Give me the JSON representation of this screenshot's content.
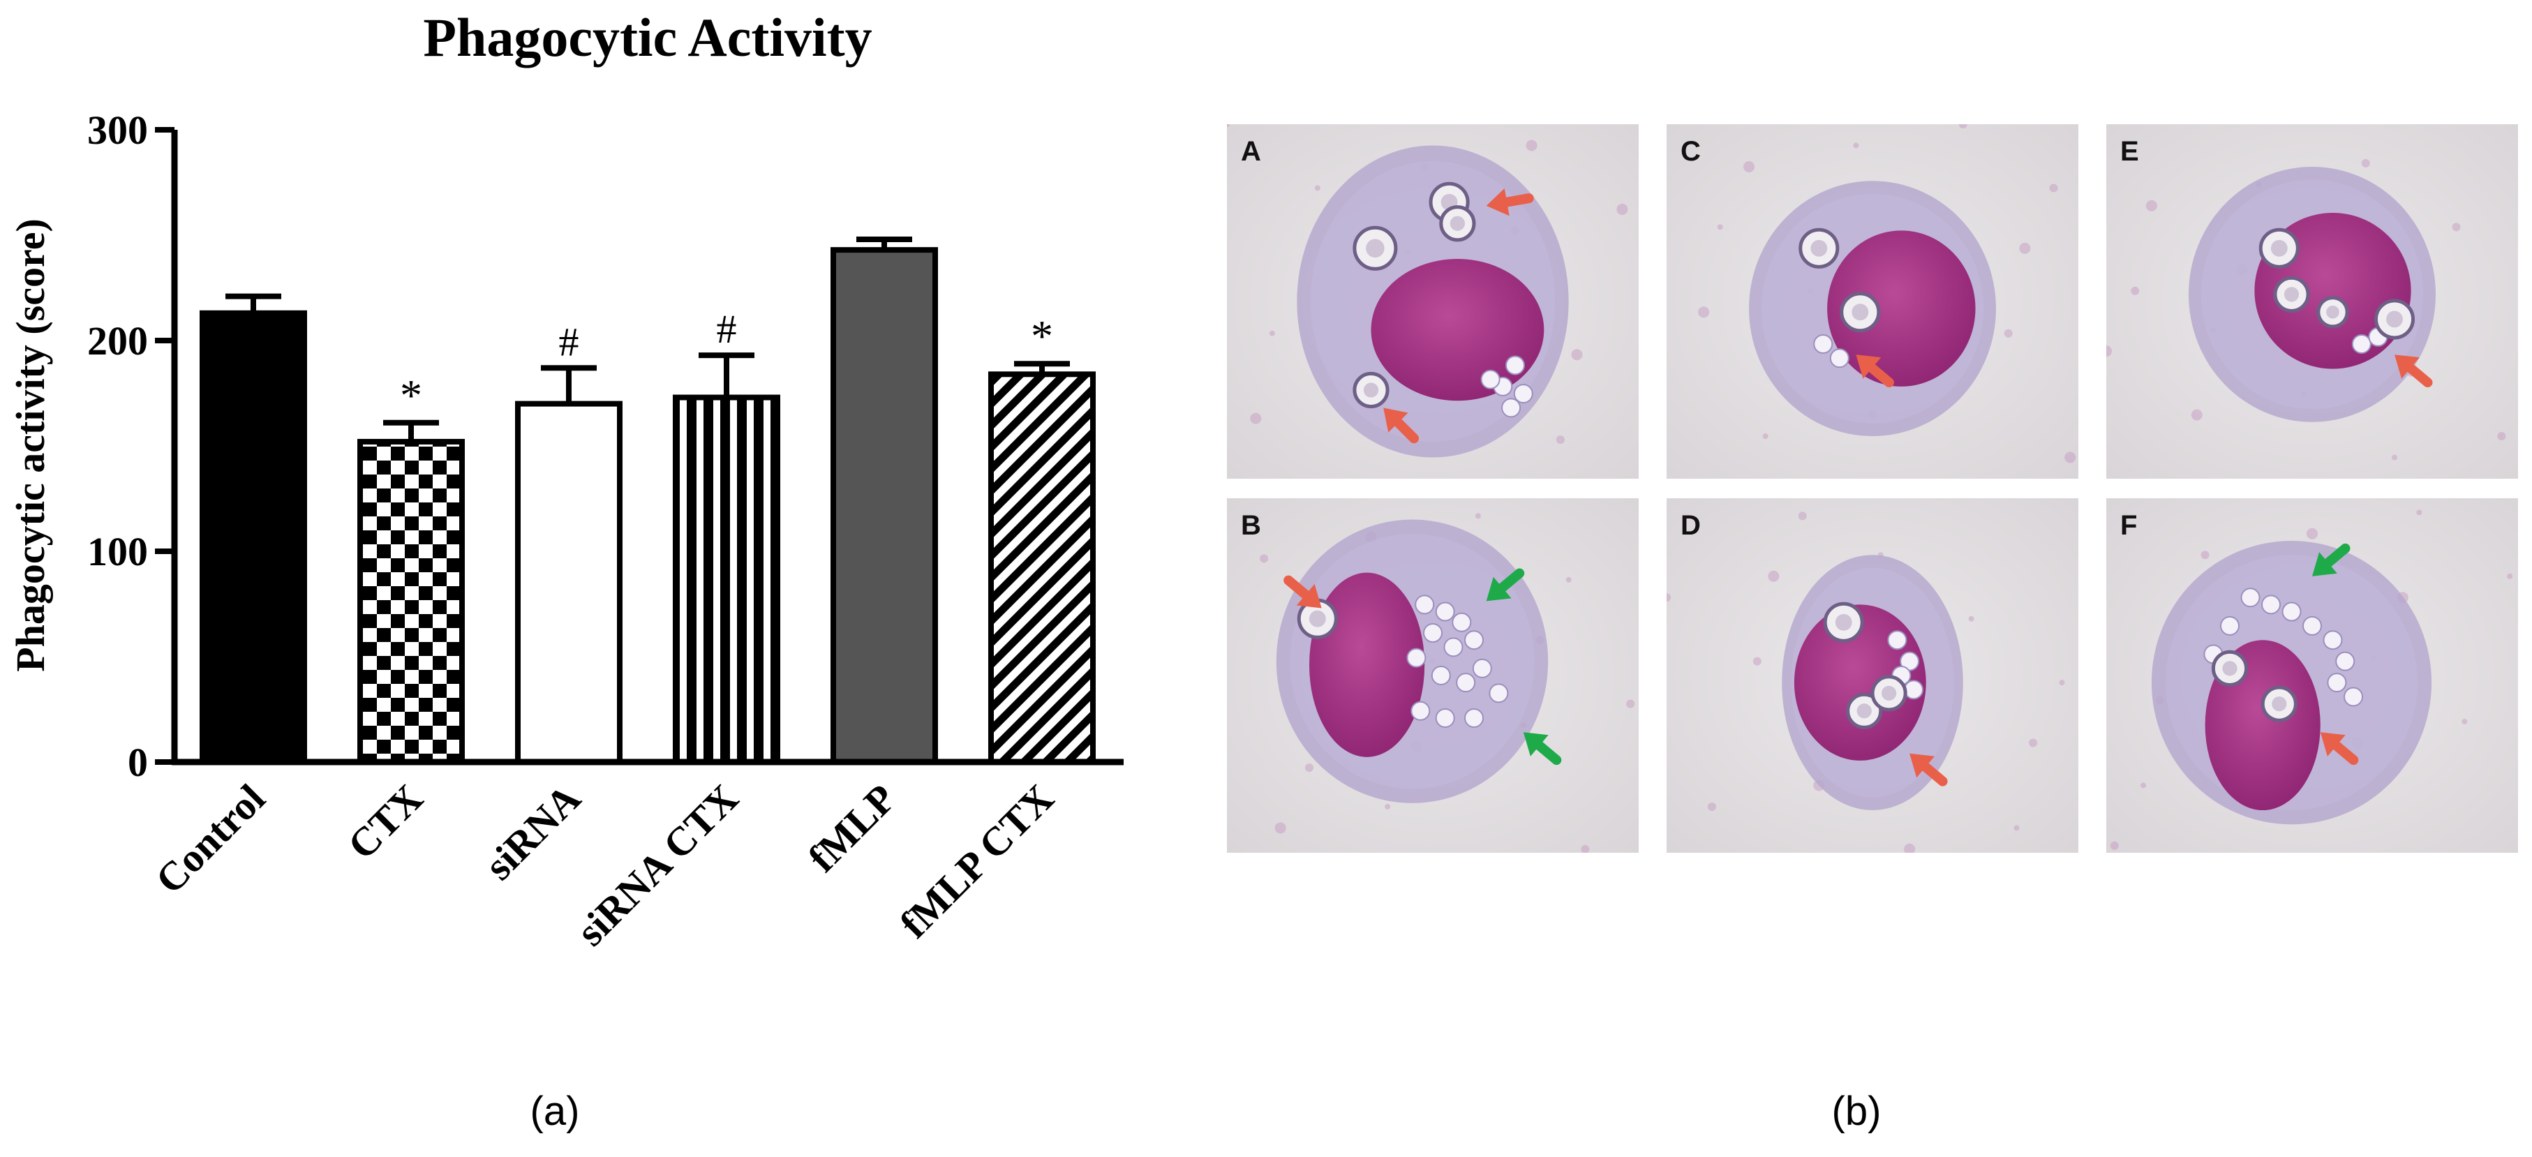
{
  "figure": {
    "panel_a_label": "(a)",
    "panel_b_label": "(b)"
  },
  "chart_data": {
    "type": "bar",
    "title": "Phagocytic Activity",
    "ylabel": "Phagocytic activity (score)",
    "xlabel": "",
    "ylim": [
      0,
      300
    ],
    "yticks": [
      0,
      100,
      200,
      300
    ],
    "grid": false,
    "categories": [
      "Control",
      "CTX",
      "siRNA",
      "siRNA CTX",
      "fMLP",
      "fMLP CTX"
    ],
    "values": [
      213,
      152,
      170,
      173,
      243,
      184
    ],
    "errors": [
      8,
      9,
      17,
      20,
      5,
      5
    ],
    "annotations": [
      "",
      "*",
      "#",
      "#",
      "",
      "*"
    ],
    "colors": {
      "solid_black": "#000000",
      "dark_gray": "#555555",
      "white": "#ffffff"
    }
  },
  "micrographs": {
    "panels": [
      {
        "letter": "A"
      },
      {
        "letter": "C"
      },
      {
        "letter": "E"
      },
      {
        "letter": "B"
      },
      {
        "letter": "D"
      },
      {
        "letter": "F"
      }
    ],
    "colors": {
      "background": "#e4e0e2",
      "nucleus": "#a52f83",
      "cytoplasm": "#b6a9cf",
      "red_arrow": "#e8604a",
      "green_arrow": "#1faa4a"
    }
  }
}
